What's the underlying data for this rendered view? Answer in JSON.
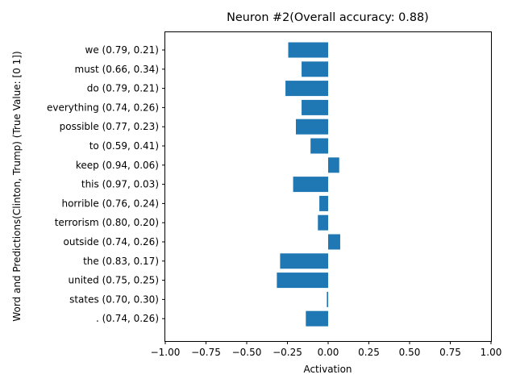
{
  "chart_data": {
    "type": "bar",
    "orientation": "horizontal",
    "title": "Neuron #2(Overall accuracy: 0.88)",
    "xlabel": "Activation",
    "ylabel": "Word and Predictions(Clinton, Trump) (True Value: [0 1])",
    "xlim": [
      -1.0,
      1.0
    ],
    "xticks": [
      "−1.00",
      "−0.75",
      "−0.50",
      "−0.25",
      "0.00",
      "0.25",
      "0.50",
      "0.75",
      "1.00"
    ],
    "xtick_values": [
      -1.0,
      -0.75,
      -0.5,
      -0.25,
      0.0,
      0.25,
      0.5,
      0.75,
      1.0
    ],
    "bar_color": "#1f77b4",
    "grid": false,
    "categories": [
      "we (0.79, 0.21)",
      "must (0.66, 0.34)",
      "do (0.79, 0.21)",
      "everything (0.74, 0.26)",
      "possible (0.77, 0.23)",
      "to (0.59, 0.41)",
      "keep (0.94, 0.06)",
      "this (0.97, 0.03)",
      "horrible (0.76, 0.24)",
      "terrorism (0.80, 0.20)",
      "outside (0.74, 0.26)",
      "the (0.83, 0.17)",
      "united (0.75, 0.25)",
      "states (0.70, 0.30)",
      ". (0.74, 0.26)"
    ],
    "values": [
      -0.245,
      -0.163,
      -0.262,
      -0.163,
      -0.198,
      -0.108,
      0.068,
      -0.215,
      -0.054,
      -0.063,
      0.074,
      -0.295,
      -0.315,
      -0.008,
      -0.137
    ]
  }
}
